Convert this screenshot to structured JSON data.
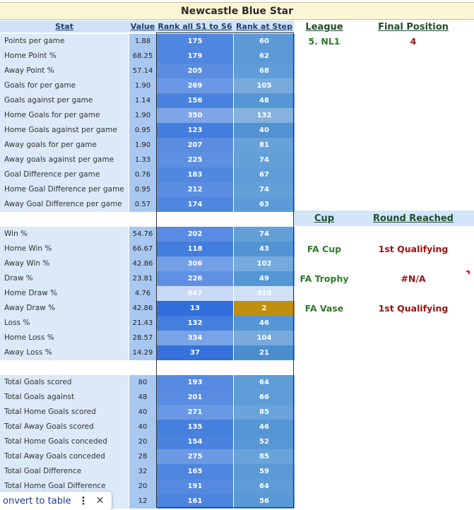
{
  "title": "Newcastle Blue Star",
  "headers": {
    "stat": "Stat",
    "value": "Value",
    "rank_all": "Rank all S1 to S6",
    "rank_step": "Rank at Step"
  },
  "league": {
    "header": "League",
    "value": "5. NL1",
    "pos_header": "Final Position",
    "pos_value": "4"
  },
  "cup": {
    "header": "Cup",
    "round_header": "Round Reached",
    "rows": [
      {
        "name": "FA Cup",
        "round": "1st Qualifying"
      },
      {
        "name": "FA Trophy",
        "round": "#N/A"
      },
      {
        "name": "FA Vase",
        "round": "1st Qualifying"
      }
    ]
  },
  "groups": [
    [
      {
        "stat": "Points per game",
        "value": "1.88",
        "rank_all": "175",
        "rank_step": "60",
        "c1": "#4f86e0",
        "c2": "#5b9ad6"
      },
      {
        "stat": "Home Point %",
        "value": "68.25",
        "rank_all": "179",
        "rank_step": "62",
        "c1": "#4f86e0",
        "c2": "#5b9ad6"
      },
      {
        "stat": "Away Point %",
        "value": "57.14",
        "rank_all": "205",
        "rank_step": "68",
        "c1": "#5a8de1",
        "c2": "#5f9dd8"
      },
      {
        "stat": "Goals for per game",
        "value": "1.90",
        "rank_all": "269",
        "rank_step": "105",
        "c1": "#6a98e4",
        "c2": "#78aadc"
      },
      {
        "stat": "Goals against per game",
        "value": "1.14",
        "rank_all": "156",
        "rank_step": "48",
        "c1": "#4a82df",
        "c2": "#5596d4"
      },
      {
        "stat": "Home Goals for per game",
        "value": "1.90",
        "rank_all": "350",
        "rank_step": "132",
        "c1": "#7ea6e8",
        "c2": "#86b2de"
      },
      {
        "stat": "Home Goals against per game",
        "value": "0.95",
        "rank_all": "123",
        "rank_step": "40",
        "c1": "#437ddd",
        "c2": "#5192d2"
      },
      {
        "stat": "Away goals for per game",
        "value": "1.90",
        "rank_all": "207",
        "rank_step": "81",
        "c1": "#5a8de1",
        "c2": "#67a1d9"
      },
      {
        "stat": "Away goals against per game",
        "value": "1.33",
        "rank_all": "225",
        "rank_step": "74",
        "c1": "#5e90e2",
        "c2": "#63a0d8"
      },
      {
        "stat": "Goal Difference per game",
        "value": "0.76",
        "rank_all": "183",
        "rank_step": "67",
        "c1": "#5088e0",
        "c2": "#5f9cd8"
      },
      {
        "stat": "Home Goal Difference per game",
        "value": "0.95",
        "rank_all": "212",
        "rank_step": "74",
        "c1": "#5b8ee1",
        "c2": "#63a0d8"
      },
      {
        "stat": "Away Goal Difference per game",
        "value": "0.57",
        "rank_all": "174",
        "rank_step": "63",
        "c1": "#4f86e0",
        "c2": "#5c9bd7"
      }
    ],
    [
      {
        "stat": "Win %",
        "value": "54.76",
        "rank_all": "202",
        "rank_step": "74",
        "c1": "#598ce1",
        "c2": "#63a0d8"
      },
      {
        "stat": "Home Win %",
        "value": "66.67",
        "rank_all": "118",
        "rank_step": "43",
        "c1": "#427cdd",
        "c2": "#5294d3"
      },
      {
        "stat": "Away Win %",
        "value": "42.86",
        "rank_all": "306",
        "rank_step": "102",
        "c1": "#729fe6",
        "c2": "#76a9dc"
      },
      {
        "stat": "Draw %",
        "value": "23.81",
        "rank_all": "226",
        "rank_step": "49",
        "c1": "#5f90e2",
        "c2": "#5596d4"
      },
      {
        "stat": "Home Draw %",
        "value": "4.76",
        "rank_all": "947",
        "rank_step": "310",
        "c1": "#c9daf6",
        "c2": "#cfe1f3"
      },
      {
        "stat": "Away Draw %",
        "value": "42.86",
        "rank_all": "13",
        "rank_step": "2",
        "c1": "#2f6edb",
        "c2": "#c08f0e"
      },
      {
        "stat": "Loss %",
        "value": "21.43",
        "rank_all": "132",
        "rank_step": "46",
        "c1": "#457fde",
        "c2": "#5495d4"
      },
      {
        "stat": "Home Loss %",
        "value": "28.57",
        "rank_all": "334",
        "rank_step": "104",
        "c1": "#78a3e7",
        "c2": "#78aadc"
      },
      {
        "stat": "Away Loss %",
        "value": "14.29",
        "rank_all": "37",
        "rank_step": "21",
        "c1": "#3572dc",
        "c2": "#4a8ed0"
      }
    ],
    [
      {
        "stat": "Total Goals scored",
        "value": "80",
        "rank_all": "193",
        "rank_step": "64",
        "c1": "#558ae0",
        "c2": "#5d9cd7"
      },
      {
        "stat": "Total Goals against",
        "value": "48",
        "rank_all": "201",
        "rank_step": "66",
        "c1": "#588ce1",
        "c2": "#5f9dd8"
      },
      {
        "stat": "Total Home Goals scored",
        "value": "40",
        "rank_all": "271",
        "rank_step": "85",
        "c1": "#6a98e4",
        "c2": "#69a3da"
      },
      {
        "stat": "Total Away Goals scored",
        "value": "40",
        "rank_all": "135",
        "rank_step": "46",
        "c1": "#4680de",
        "c2": "#5495d4"
      },
      {
        "stat": "Total Home Goals conceded",
        "value": "20",
        "rank_all": "154",
        "rank_step": "52",
        "c1": "#4a83df",
        "c2": "#5897d5"
      },
      {
        "stat": "Total Away Goals conceded",
        "value": "28",
        "rank_all": "275",
        "rank_step": "85",
        "c1": "#6b99e4",
        "c2": "#69a3da"
      },
      {
        "stat": "Total Goal Difference",
        "value": "32",
        "rank_all": "165",
        "rank_step": "59",
        "c1": "#4d85df",
        "c2": "#5b9ad6"
      },
      {
        "stat": "Total Home Goal Difference",
        "value": "20",
        "rank_all": "191",
        "rank_step": "64",
        "c1": "#558ae0",
        "c2": "#5d9cd7"
      },
      {
        "stat": "",
        "value": "12",
        "rank_all": "161",
        "rank_step": "56",
        "c1": "#4c84df",
        "c2": "#5999d5"
      }
    ]
  ],
  "chip": {
    "label": "onvert to table",
    "more_icon": "more-vert-icon",
    "close_icon": "close-icon"
  }
}
